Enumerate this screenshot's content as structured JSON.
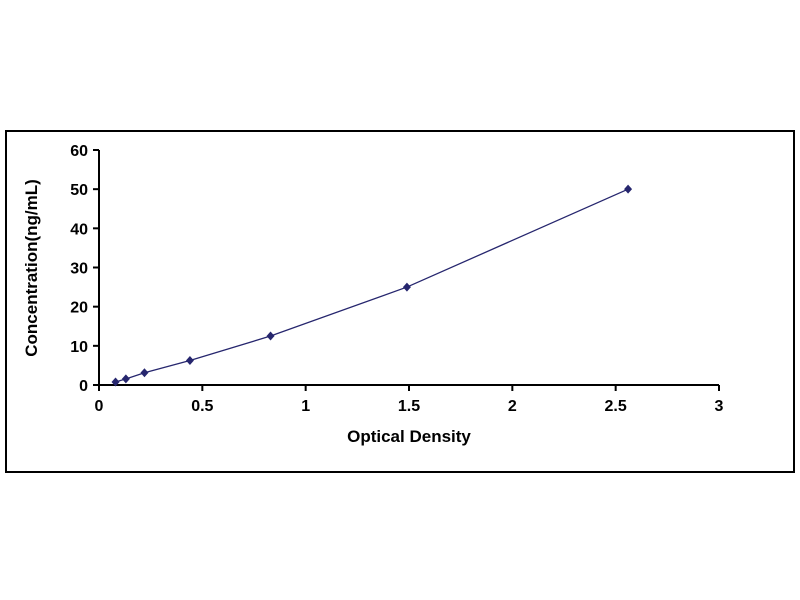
{
  "figure": {
    "background": "#ffffff",
    "border_color": "#000000"
  },
  "chart_data": {
    "type": "line",
    "title": "",
    "xlabel": "Optical Density",
    "ylabel": "Concentration(ng/mL)",
    "x": [
      0.08,
      0.13,
      0.22,
      0.44,
      0.83,
      1.49,
      2.56
    ],
    "y": [
      0.78,
      1.56,
      3.12,
      6.25,
      12.5,
      25.0,
      50.0
    ],
    "xlim": [
      0,
      3
    ],
    "ylim": [
      0,
      60
    ],
    "xticks": [
      0,
      0.5,
      1,
      1.5,
      2,
      2.5,
      3
    ],
    "xtick_labels": [
      "0",
      "0.5",
      "1",
      "1.5",
      "2",
      "2.5",
      "3"
    ],
    "yticks": [
      0,
      10,
      20,
      30,
      40,
      50,
      60
    ],
    "ytick_labels": [
      "0",
      "10",
      "20",
      "30",
      "40",
      "50",
      "60"
    ],
    "line_color": "#26266e",
    "marker": "diamond",
    "marker_color": "#26266e",
    "axis_color": "#000000",
    "grid": false,
    "legend": null
  }
}
